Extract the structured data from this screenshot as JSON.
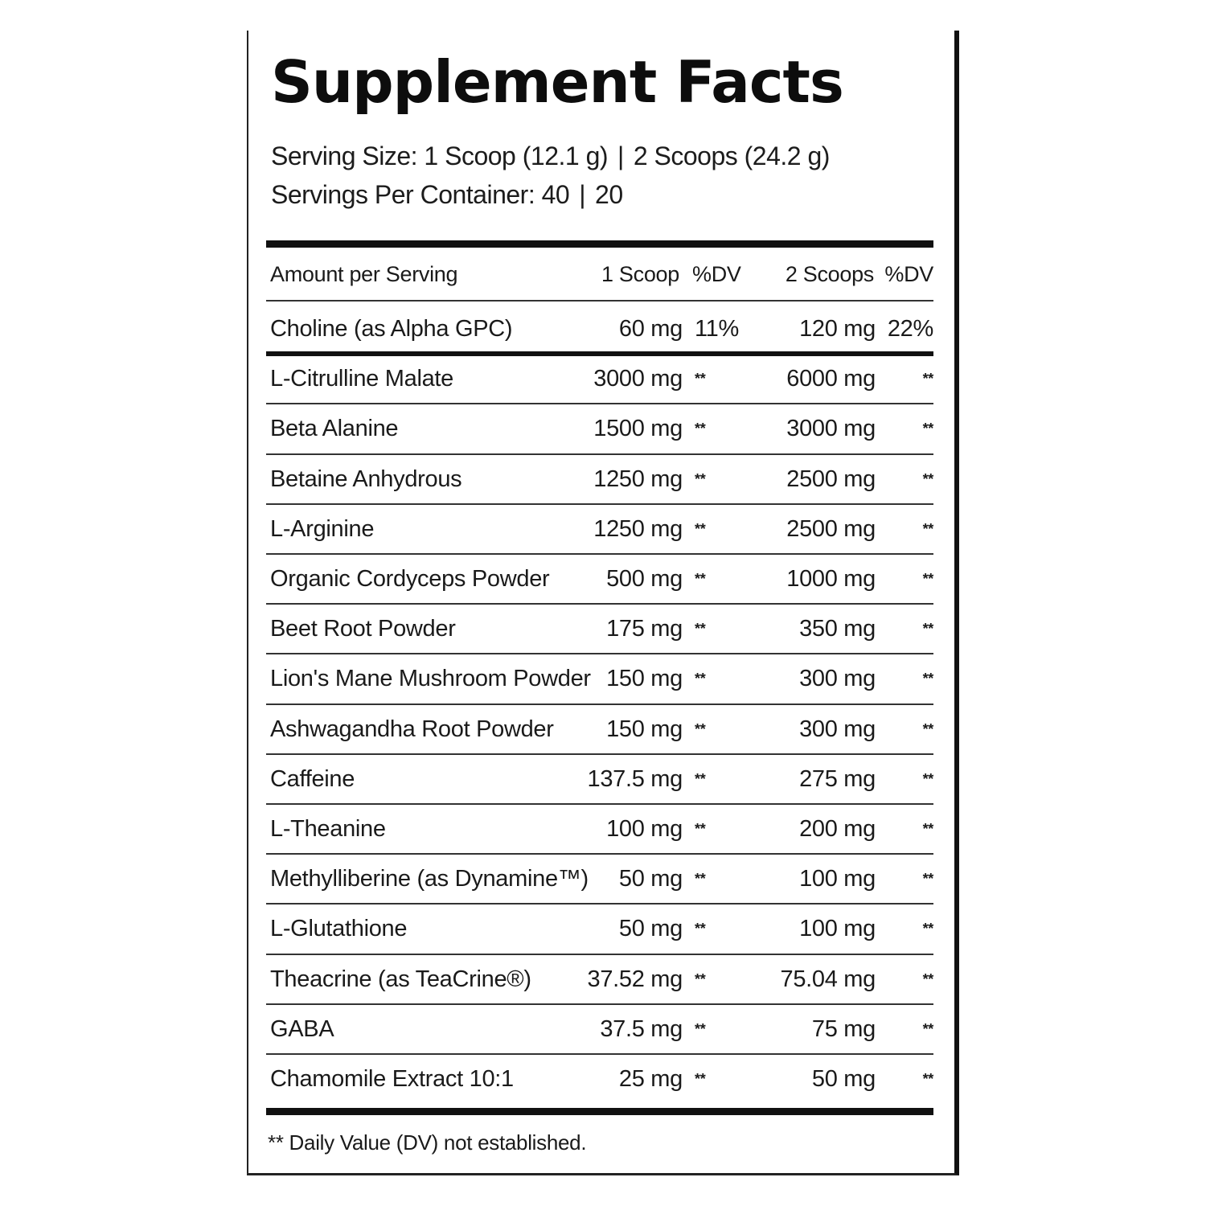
{
  "title": "Supplement Facts",
  "serving_size": {
    "label": "Serving Size: 1 Scoop (12.1 g)",
    "separator": "|",
    "alt": "2 Scoops (24.2 g)"
  },
  "servings_per_container": {
    "label": "Servings Per Container: 40",
    "separator": "|",
    "alt": "20"
  },
  "table_header": {
    "name": "Amount per Serving",
    "amount_1": "1 Scoop",
    "dv_1": "%DV",
    "amount_2": "2 Scoops",
    "dv_2": "%DV"
  },
  "rows": [
    {
      "name": "Choline (as Alpha GPC)",
      "amount_1": "60 mg",
      "dv_1": "11%",
      "amount_2": "120 mg",
      "dv_2": "22%"
    },
    {
      "name": "L-Citrulline Malate",
      "amount_1": "3000 mg",
      "dv_1": "**",
      "amount_2": "6000 mg",
      "dv_2": "**"
    },
    {
      "name": "Beta Alanine",
      "amount_1": "1500 mg",
      "dv_1": "**",
      "amount_2": "3000 mg",
      "dv_2": "**"
    },
    {
      "name": "Betaine Anhydrous",
      "amount_1": "1250 mg",
      "dv_1": "**",
      "amount_2": "2500 mg",
      "dv_2": "**"
    },
    {
      "name": "L-Arginine",
      "amount_1": "1250 mg",
      "dv_1": "**",
      "amount_2": "2500 mg",
      "dv_2": "**"
    },
    {
      "name": "Organic Cordyceps Powder",
      "amount_1": "500 mg",
      "dv_1": "**",
      "amount_2": "1000 mg",
      "dv_2": "**"
    },
    {
      "name": "Beet Root Powder",
      "amount_1": "175 mg",
      "dv_1": "**",
      "amount_2": "350 mg",
      "dv_2": "**"
    },
    {
      "name": "Lion's Mane Mushroom Powder",
      "amount_1": "150 mg",
      "dv_1": "**",
      "amount_2": "300 mg",
      "dv_2": "**"
    },
    {
      "name": "Ashwagandha Root Powder",
      "amount_1": "150 mg",
      "dv_1": "**",
      "amount_2": "300 mg",
      "dv_2": "**"
    },
    {
      "name": "Caffeine",
      "amount_1": "137.5 mg",
      "dv_1": "**",
      "amount_2": "275 mg",
      "dv_2": "**"
    },
    {
      "name": "L-Theanine",
      "amount_1": "100 mg",
      "dv_1": "**",
      "amount_2": "200 mg",
      "dv_2": "**"
    },
    {
      "name": "Methylliberine (as Dynamine™)",
      "amount_1": "50 mg",
      "dv_1": "**",
      "amount_2": "100 mg",
      "dv_2": "**"
    },
    {
      "name": "L-Glutathione",
      "amount_1": "50 mg",
      "dv_1": "**",
      "amount_2": "100 mg",
      "dv_2": "**"
    },
    {
      "name": "Theacrine (as TeaCrine®)",
      "amount_1": "37.52 mg",
      "dv_1": "**",
      "amount_2": "75.04 mg",
      "dv_2": "**"
    },
    {
      "name": "GABA",
      "amount_1": "37.5 mg",
      "dv_1": "**",
      "amount_2": "75 mg",
      "dv_2": "**"
    },
    {
      "name": "Chamomile Extract 10:1",
      "amount_1": "25 mg",
      "dv_1": "**",
      "amount_2": "50 mg",
      "dv_2": "**"
    }
  ],
  "footnote": "** Daily Value (DV) not established."
}
